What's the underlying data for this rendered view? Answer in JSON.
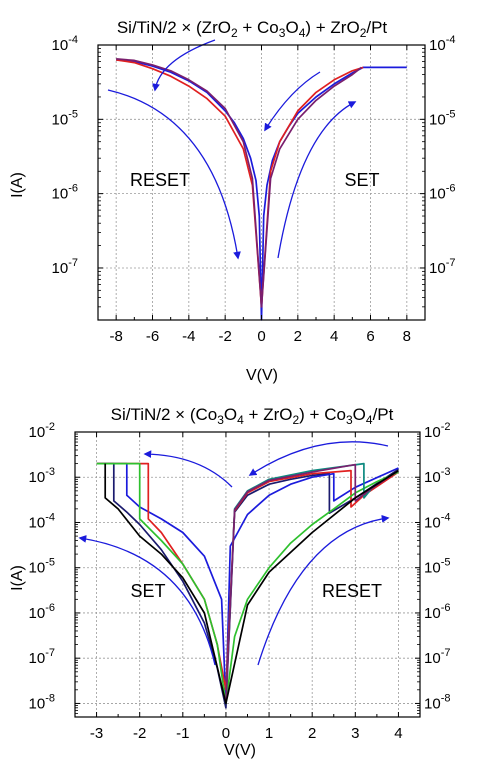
{
  "colors": {
    "blue": "#1b1bdc",
    "red": "#e02020",
    "purple": "#7a1f6e",
    "navy": "#1b1b6e",
    "green": "#2ec02e",
    "teal": "#0e8a80",
    "black": "#000000",
    "grid": "#9a9a9a"
  },
  "chart_data": [
    {
      "type": "line",
      "title_parts": [
        "Si/TiN/2 × (ZrO",
        "2",
        " + Co",
        "3",
        "O",
        "4",
        ") + ZrO",
        "2",
        "/Pt"
      ],
      "xlabel": "V(V)",
      "ylabel": "I(A)",
      "xlim": [
        -9,
        9
      ],
      "ylim_exp": [
        -7.7,
        -4
      ],
      "log_y": true,
      "grid": true,
      "xticks": [
        "-8",
        "-6",
        "-4",
        "-2",
        "0",
        "2",
        "4",
        "6",
        "8"
      ],
      "yticks_exp": [
        "-7",
        "-6",
        "-5",
        "-4"
      ],
      "annotations": [
        "RESET",
        "SET"
      ],
      "series": [
        {
          "color": "blue",
          "x": [
            -8,
            -7,
            -6,
            -5,
            -4,
            -3,
            -2,
            -1.5,
            -1,
            -0.6,
            -0.3,
            -0.12,
            0,
            0.12,
            0.3,
            0.6,
            1,
            1.5,
            2,
            3,
            4,
            5,
            5.6,
            8
          ],
          "y": [
            6.3e-05,
            6e-05,
            5.2e-05,
            4.3e-05,
            3.3e-05,
            2.3e-05,
            1.3e-05,
            9e-06,
            5.5e-06,
            3e-06,
            1.5e-06,
            5e-07,
            2e-08,
            5e-07,
            1.3e-06,
            2.8e-06,
            5e-06,
            8e-06,
            1.2e-05,
            2e-05,
            3e-05,
            4.2e-05,
            5e-05,
            5e-05
          ]
        },
        {
          "color": "red",
          "x": [
            -8,
            -7,
            -6,
            -5,
            -4,
            -3,
            -2,
            -1,
            -0.5,
            0,
            0.5,
            1,
            2,
            3,
            4,
            5,
            5.6
          ],
          "y": [
            6.3e-05,
            5.8e-05,
            4.8e-05,
            3.8e-05,
            2.8e-05,
            1.9e-05,
            1.1e-05,
            4e-06,
            1.3e-06,
            3e-08,
            2e-06,
            5e-06,
            1.3e-05,
            2.3e-05,
            3.4e-05,
            4.5e-05,
            5e-05
          ]
        },
        {
          "color": "purple",
          "x": [
            -8,
            -7,
            -6,
            -5,
            -4,
            -3,
            -2,
            -1,
            -0.5,
            0,
            0.5,
            1,
            2,
            3,
            4,
            5,
            5.5
          ],
          "y": [
            6.5e-05,
            6.2e-05,
            5.4e-05,
            4.5e-05,
            3.4e-05,
            2.4e-05,
            1.4e-05,
            5e-06,
            1.6e-06,
            3e-08,
            1.6e-06,
            4e-06,
            1e-05,
            1.8e-05,
            2.8e-05,
            4e-05,
            5e-05
          ]
        }
      ]
    },
    {
      "type": "line",
      "title_parts": [
        "Si/TiN/2 × (Co",
        "3",
        "O",
        "4",
        " + ZrO",
        "2",
        ") + Co",
        "3",
        "O",
        "4",
        "/Pt"
      ],
      "xlabel": "V(V)",
      "ylabel": "I(A)",
      "xlim": [
        -3.5,
        4.5
      ],
      "ylim_exp": [
        -8.3,
        -2
      ],
      "log_y": true,
      "grid": true,
      "xticks": [
        "-3",
        "-2",
        "-1",
        "0",
        "1",
        "2",
        "3",
        "4"
      ],
      "yticks_exp": [
        "-8",
        "-7",
        "-6",
        "-5",
        "-4",
        "-3",
        "-2"
      ],
      "annotations": [
        "SET",
        "RESET"
      ],
      "series": [
        {
          "color": "navy",
          "x": [
            -3,
            -2.6,
            -2.6,
            -2.3,
            -2,
            -1.5,
            -1,
            -0.5,
            -0.2,
            0,
            0.2,
            0.5,
            1,
            1.5,
            2,
            2.4,
            2.4,
            3,
            4
          ],
          "y": [
            0.002,
            0.002,
            0.0003,
            0.00017,
            9e-05,
            2.5e-05,
            5e-06,
            6e-07,
            6e-08,
            8e-09,
            0.00017,
            0.0004,
            0.0007,
            0.0009,
            0.0011,
            0.0012,
            0.00016,
            0.00035,
            0.0015
          ]
        },
        {
          "color": "blue",
          "x": [
            -3,
            -2.3,
            -2.3,
            -2,
            -1.5,
            -1,
            -0.5,
            -0.1,
            0,
            0.1,
            0.5,
            1,
            1.5,
            2,
            2.5,
            2.5,
            3,
            4
          ],
          "y": [
            0.002,
            0.002,
            0.0004,
            0.00022,
            0.00012,
            6e-05,
            1.8e-05,
            2e-06,
            1e-08,
            3e-05,
            0.00015,
            0.0004,
            0.0007,
            0.001,
            0.0012,
            0.0003,
            0.0006,
            0.0016
          ]
        },
        {
          "color": "red",
          "x": [
            -3,
            -1.8,
            -1.8,
            -1.5,
            -1,
            -0.5,
            -0.2,
            0,
            0.2,
            0.5,
            1,
            2,
            2.9,
            2.9,
            3.2,
            4
          ],
          "y": [
            0.002,
            0.002,
            0.00012,
            6e-05,
            1.2e-05,
            2e-06,
            2e-07,
            2e-08,
            0.00018,
            0.00045,
            0.0008,
            0.0012,
            0.0014,
            0.00022,
            0.0004,
            0.0013
          ]
        },
        {
          "color": "green",
          "x": [
            -3,
            -2.0,
            -2.0,
            -1.5,
            -1,
            -0.5,
            -0.2,
            0,
            0.2,
            0.5,
            1,
            1.5,
            2,
            2.5,
            3,
            3.5,
            4
          ],
          "y": [
            0.002,
            0.002,
            0.00012,
            4e-05,
            1.2e-05,
            2e-06,
            2e-07,
            1e-08,
            3e-07,
            2e-06,
            1e-05,
            3.5e-05,
            9e-05,
            0.0002,
            0.00045,
            0.0008,
            0.0013
          ]
        },
        {
          "color": "teal",
          "x": [
            0,
            0.2,
            0.5,
            1,
            2,
            3.2,
            3.2,
            3.4,
            4
          ],
          "y": [
            1e-08,
            0.0002,
            0.0005,
            0.0009,
            0.0014,
            0.002,
            0.00035,
            0.0006,
            0.0014
          ]
        },
        {
          "color": "purple",
          "x": [
            0,
            0.2,
            0.5,
            1,
            2,
            3.0,
            3.0,
            3.3,
            4
          ],
          "y": [
            1e-08,
            0.00019,
            0.00048,
            0.00085,
            0.0013,
            0.0019,
            0.0003,
            0.0005,
            0.0014
          ]
        },
        {
          "color": "black",
          "x": [
            -2.8,
            -2.8,
            -2.5,
            -2,
            -1.5,
            -1,
            -0.5,
            0,
            0.5,
            1,
            2,
            3,
            4
          ],
          "y": [
            0.002,
            0.00035,
            0.0002,
            5e-05,
            2e-05,
            6e-06,
            1e-06,
            1e-08,
            1.5e-06,
            8e-06,
            6e-05,
            0.00035,
            0.0014
          ]
        }
      ]
    }
  ]
}
